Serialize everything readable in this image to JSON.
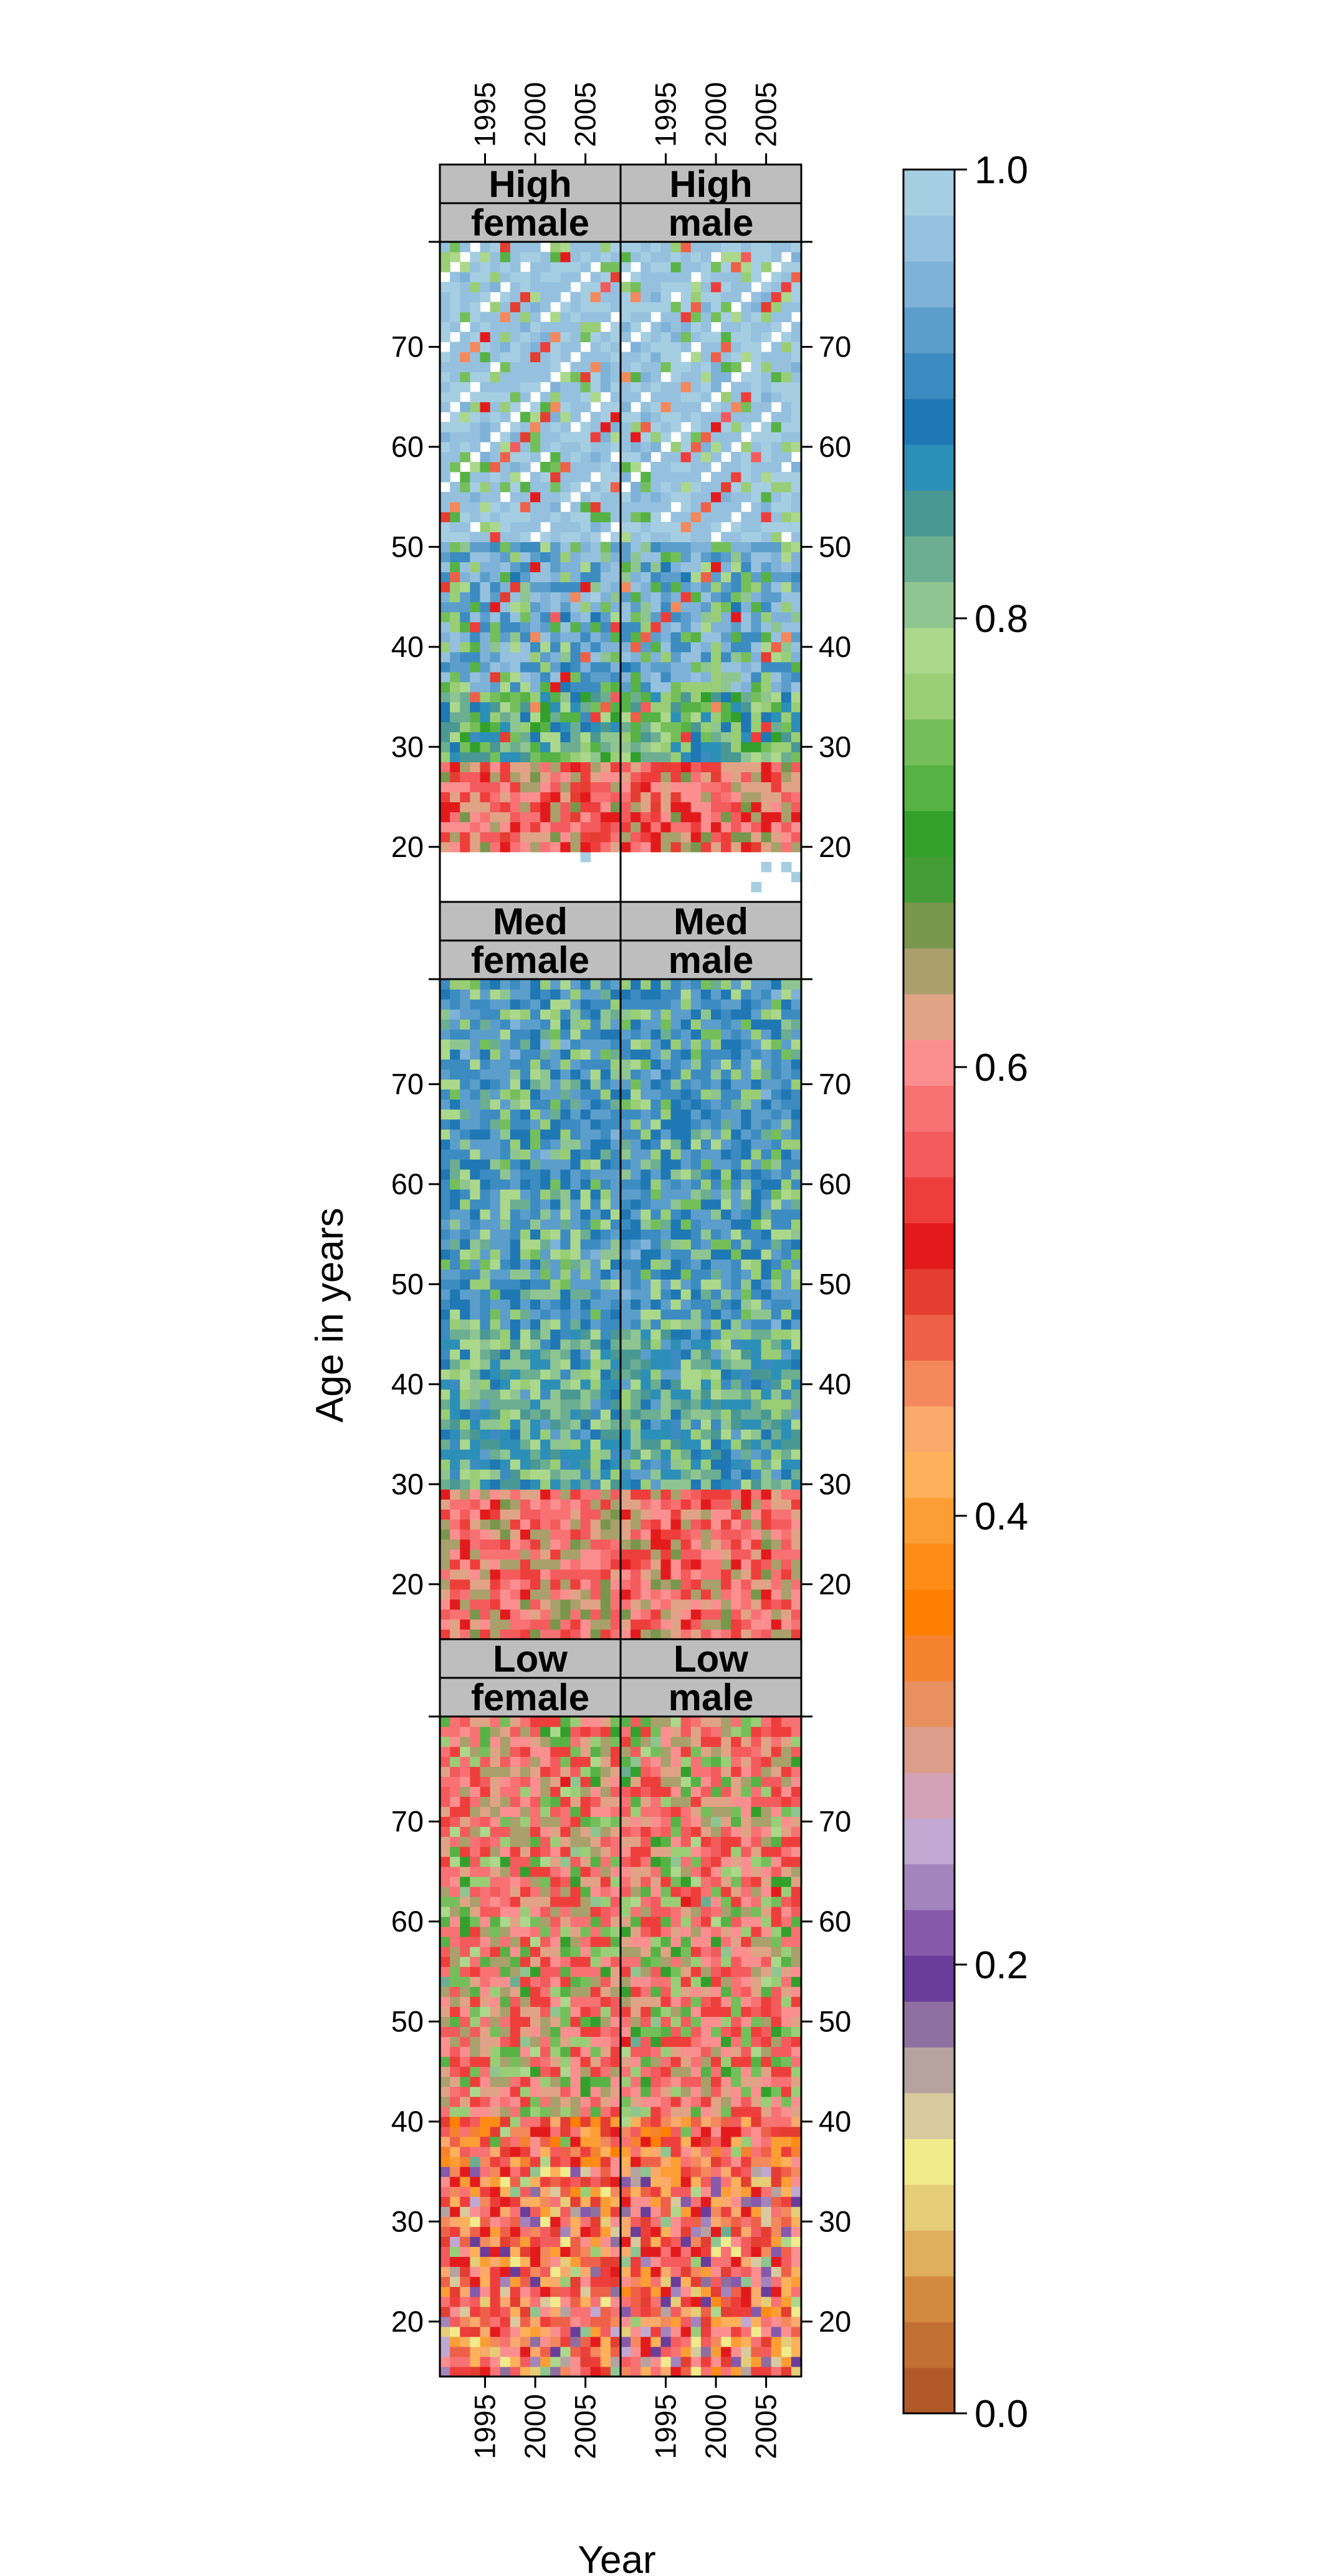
{
  "chart_data": {
    "type": "heatmap",
    "xlabel": "Year",
    "ylabel": "Age in years",
    "x_range": [
      1991,
      2008
    ],
    "y_range": [
      15,
      80
    ],
    "x_ticks": [
      1995,
      2000,
      2005
    ],
    "y_ticks": [
      20,
      30,
      40,
      50,
      60,
      70
    ],
    "grid": false,
    "colorbar": {
      "range": [
        0.0,
        1.0
      ],
      "ticks": [
        "0.0",
        "0.2",
        "0.4",
        "0.6",
        "0.8",
        "1.0"
      ],
      "colors": [
        "#B15928",
        "#C26F33",
        "#D38A40",
        "#DFAE5E",
        "#E6CD78",
        "#F2EB8C",
        "#D8CA9E",
        "#B6A3A0",
        "#8F6FA0",
        "#6A3D9A",
        "#8659AA",
        "#A384BC",
        "#C0A8D3",
        "#D3A2B4",
        "#DC9D8A",
        "#E89060",
        "#F5822F",
        "#FF7F00",
        "#FE8C17",
        "#FD9E35",
        "#FDB15A",
        "#F9AA6C",
        "#F3895C",
        "#EE6148",
        "#E43D31",
        "#E31A1C",
        "#EE3E3B",
        "#F45B5D",
        "#F87274",
        "#FB8F90",
        "#E1A386",
        "#A9A06C",
        "#79974C",
        "#459D37",
        "#33A02C",
        "#57B245",
        "#75BF5B",
        "#99CE77",
        "#ACD88C",
        "#8FC591",
        "#6CAE92",
        "#4A9894",
        "#2B8FB8",
        "#1F78B4",
        "#3C8CC1",
        "#5C9ECB",
        "#7FB2D8",
        "#95C1DF",
        "#A6CEE3"
      ]
    },
    "panels": [
      {
        "education": "High",
        "sex": "female"
      },
      {
        "education": "High",
        "sex": "male"
      },
      {
        "education": "Med",
        "sex": "female"
      },
      {
        "education": "Med",
        "sex": "male"
      },
      {
        "education": "Low",
        "sex": "female"
      },
      {
        "education": "Low",
        "sex": "male"
      }
    ],
    "value_description": "Each cell is one single year (1991-2008) by one single age (15-80). Typical values: High education ~0.85-1.0 above age 35, ~0.55-0.65 at ages 20-28, missing below age 20; Med education ~0.6 at ages 15-28, ~0.78-0.85 at ages 30-45, ~0.85-0.95 above 45; Low education ~0.35-0.55 with purple/yellow cells (0.1-0.25) at ages 20-35."
  }
}
